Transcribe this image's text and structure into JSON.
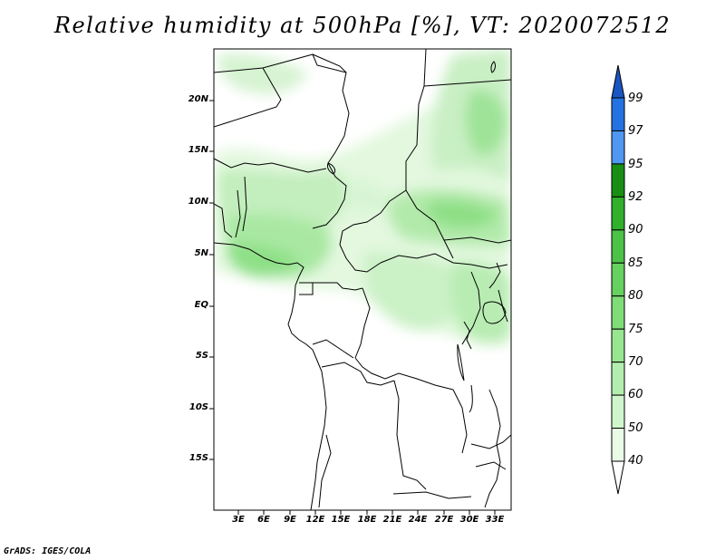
{
  "title": "Relative humidity at 500hPa [%], VT: 2020072512",
  "credit": "GrADS: IGES/COLA",
  "lat_ticks": [
    "20N",
    "15N",
    "10N",
    "5N",
    "EQ",
    "5S",
    "10S",
    "15S"
  ],
  "lon_ticks": [
    "3E",
    "6E",
    "9E",
    "12E",
    "15E",
    "18E",
    "21E",
    "24E",
    "27E",
    "30E",
    "33E"
  ],
  "colorbar": {
    "levels": [
      "40",
      "50",
      "60",
      "70",
      "75",
      "80",
      "85",
      "90",
      "92",
      "95",
      "97",
      "99"
    ],
    "colors": [
      "#ffffff",
      "#e9fbe7",
      "#d0f5cc",
      "#b4eeae",
      "#98e690",
      "#7fdd78",
      "#66d15e",
      "#4cc246",
      "#30b02b",
      "#188f14",
      "#4f97f0",
      "#2472e2",
      "#1a55c2"
    ]
  }
}
